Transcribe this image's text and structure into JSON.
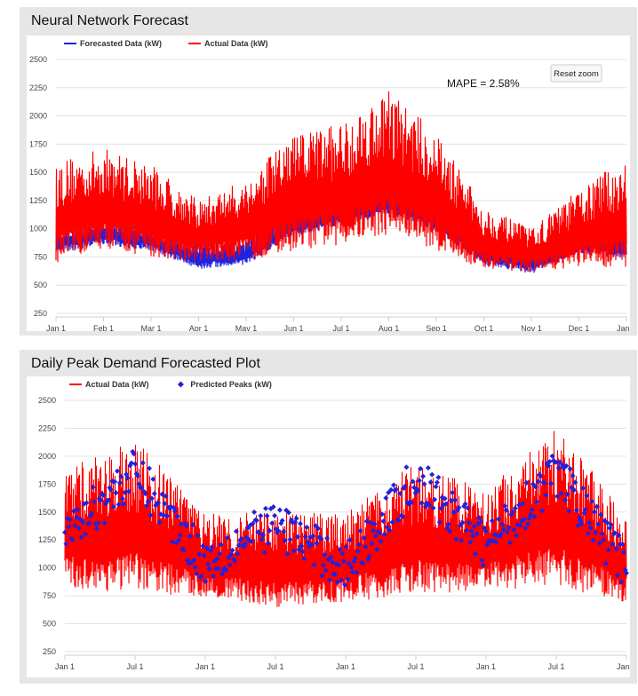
{
  "panels": [
    {
      "title": "Neural Network Forecast"
    },
    {
      "title": "Daily Peak Demand Forecasted Plot"
    }
  ],
  "colors": {
    "actual": "#ff0000",
    "forecast": "#2222dd",
    "grid": "#e3e3e3",
    "panel_bg": "#e6e6e6"
  },
  "chart_data": [
    {
      "type": "line",
      "title": "Neural Network Forecast",
      "legend": [
        "Forecasted Data (kW)",
        "Actual Data (kW)"
      ],
      "legend_placement": "top-left",
      "annotation": "MAPE = 2.58%",
      "button": "Reset zoom",
      "ylim": [
        250,
        2500
      ],
      "yticks": [
        "2500",
        "2250",
        "2000",
        "1750",
        "1500",
        "1250",
        "1000",
        "750",
        "500",
        "250"
      ],
      "xticks": [
        "Jan 1",
        "Feb 1",
        "Mar 1",
        "Apr 1",
        "May 1",
        "Jun 1",
        "Jul 1",
        "Aug 1",
        "Sep 1",
        "Oct 1",
        "Nov 1",
        "Dec 1",
        "Jan 1"
      ],
      "grid": true,
      "series": [
        {
          "name": "Actual Data (kW)",
          "x": [
            "Jan 1",
            "Feb 1",
            "Mar 1",
            "Apr 1",
            "May 1",
            "Jun 1",
            "Jul 1",
            "Aug 1",
            "Sep 1",
            "Oct 1",
            "Nov 1",
            "Dec 1",
            "Jan 1"
          ],
          "min": [
            650,
            780,
            700,
            680,
            680,
            750,
            800,
            880,
            760,
            600,
            600,
            620,
            600
          ],
          "max": [
            1600,
            1720,
            1580,
            1250,
            1450,
            1850,
            1950,
            2250,
            1850,
            1200,
            1000,
            1350,
            1640
          ]
        },
        {
          "name": "Forecasted Data (kW)",
          "x": [
            "Jan 1",
            "Feb 1",
            "Mar 1",
            "Apr 1",
            "May 1",
            "Jun 1",
            "Jul 1",
            "Aug 1",
            "Sep 1",
            "Oct 1",
            "Nov 1",
            "Dec 1",
            "Jan 1"
          ],
          "values": [
            900,
            980,
            920,
            760,
            800,
            1050,
            1150,
            1250,
            1100,
            800,
            720,
            900,
            850
          ]
        }
      ]
    },
    {
      "type": "line",
      "title": "Daily Peak Demand Forecasted Plot",
      "legend": [
        "Actual Data (kW)",
        "Predicted Peaks (kW)"
      ],
      "legend_placement": "top-left",
      "ylim": [
        250,
        2500
      ],
      "yticks": [
        "2500",
        "2250",
        "2000",
        "1750",
        "1500",
        "1250",
        "1000",
        "750",
        "500",
        "250"
      ],
      "xticks": [
        "Jan 1",
        "Jul 1",
        "Jan 1",
        "Jul 1",
        "Jan 1",
        "Jul 1",
        "Jan 1",
        "Jul 1",
        "Jan 1"
      ],
      "grid": true,
      "series": [
        {
          "name": "Actual Data (kW)",
          "x": [
            "Jan 1",
            "Jul 1",
            "Jan 1",
            "Jul 1",
            "Jan 1",
            "Jul 1",
            "Jan 1",
            "Jul 1",
            "Jan 1"
          ],
          "min": [
            750,
            700,
            700,
            600,
            650,
            700,
            750,
            750,
            650
          ],
          "max": [
            1900,
            2150,
            1500,
            1500,
            1500,
            1950,
            1700,
            2250,
            1500
          ]
        },
        {
          "name": "Predicted Peaks (kW)",
          "x": [
            "Jan 1",
            "Jul 1",
            "Jan 1",
            "Jul 1",
            "Jan 1",
            "Jul 1",
            "Jan 1",
            "Jul 1",
            "Jan 1"
          ],
          "values": [
            1300,
            1850,
            1050,
            1400,
            1000,
            1800,
            1200,
            1850,
            1000
          ]
        }
      ]
    }
  ]
}
